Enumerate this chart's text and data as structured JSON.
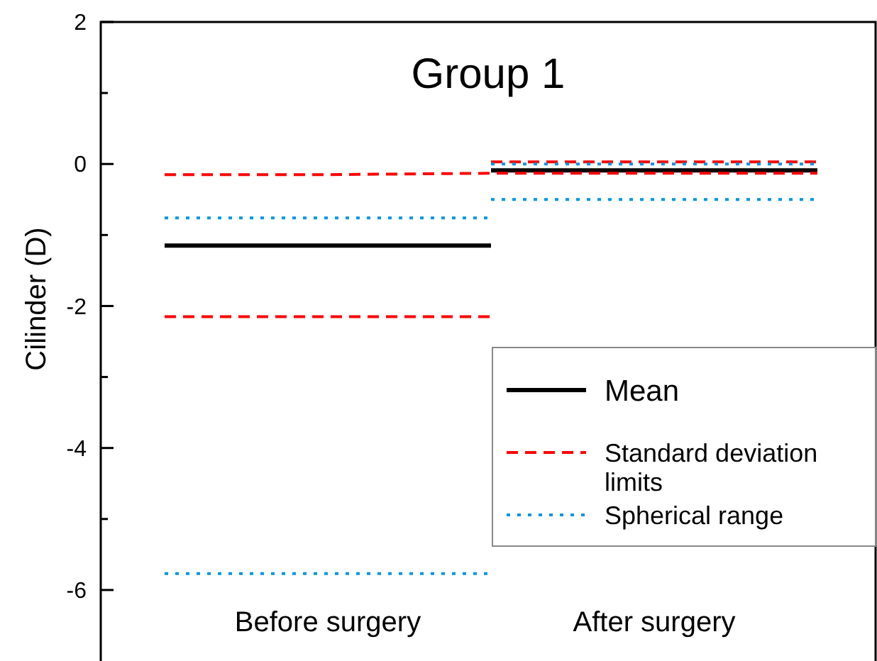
{
  "chart_data": {
    "type": "line",
    "title": "Group 1",
    "ylabel": "Cilinder (D)",
    "categories": [
      null,
      "Before surgery",
      null,
      "After surgery",
      null
    ],
    "ylim": [
      -7,
      2
    ],
    "yticks": [
      -6,
      -4,
      -2,
      0,
      2
    ],
    "legend": "bottom right",
    "grid": false,
    "marker": "none",
    "series": [
      {
        "name": "Mean",
        "color": "#000000",
        "line_style": "solid",
        "values": [
          -1.15,
          -1.15,
          -1.15,
          null,
          null
        ]
      },
      {
        "color": "#000000",
        "line_style": "solid",
        "values": [
          null,
          null,
          -0.09,
          -0.09,
          -0.09
        ]
      },
      {
        "name": "Standard deviation limits",
        "color": "#ff0000",
        "line_style": "dashed",
        "values": [
          -0.15,
          -0.15,
          -0.13,
          -0.13,
          -0.13
        ]
      },
      {
        "color": "#ff0000",
        "line_style": "dashed",
        "values": [
          null,
          null,
          0.03,
          0.03,
          0.03
        ]
      },
      {
        "color": "#ff0000",
        "line_style": "dashed",
        "values": [
          -2.15,
          -2.15,
          -2.15,
          null,
          null
        ]
      },
      {
        "name": "Spherical range",
        "color": "#0096e6",
        "line_style": "dotted",
        "values": [
          -0.76,
          -0.76,
          -0.76,
          null,
          null
        ]
      },
      {
        "color": "#0096e6",
        "line_style": "dotted",
        "values": [
          null,
          null,
          0.0,
          0.0,
          0.0
        ]
      },
      {
        "color": "#0096e6",
        "line_style": "dotted",
        "values": [
          -5.77,
          -5.77,
          -5.77,
          null,
          null
        ]
      },
      {
        "color": "#0096e6",
        "line_style": "dotted",
        "values": [
          null,
          null,
          -0.5,
          -0.5,
          -0.5
        ]
      }
    ]
  }
}
